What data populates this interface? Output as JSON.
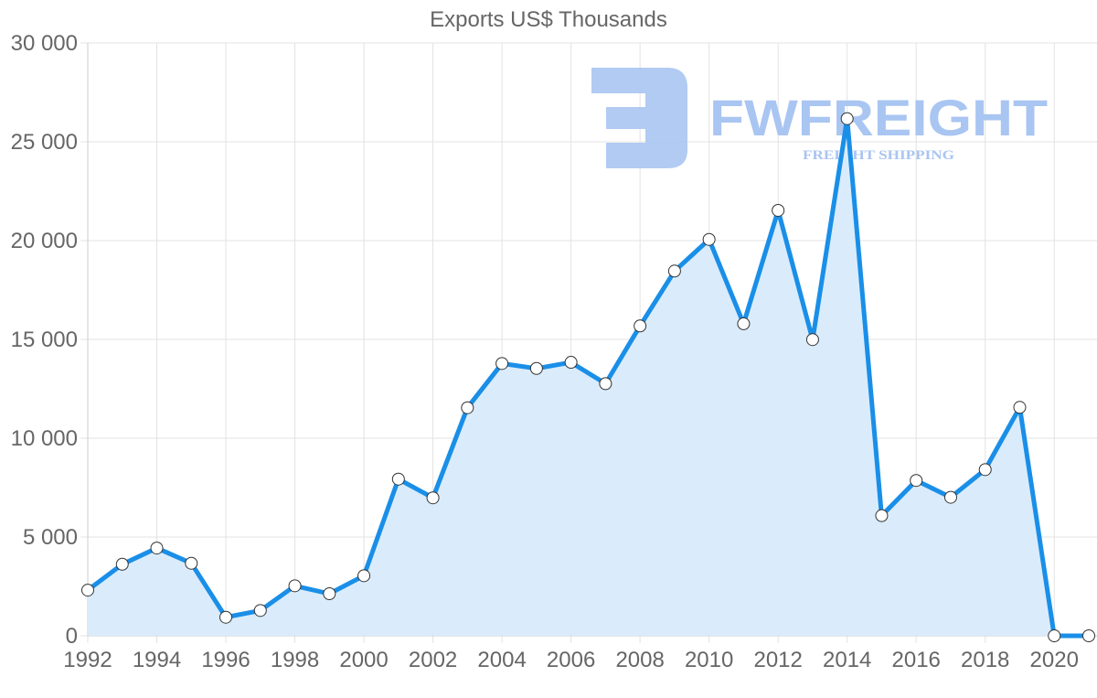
{
  "chart_data": {
    "type": "area",
    "title": "Exports US$ Thousands",
    "xlabel": "",
    "ylabel": "",
    "x": [
      1992,
      1993,
      1994,
      1995,
      1996,
      1997,
      1998,
      1999,
      2000,
      2001,
      2002,
      2003,
      2004,
      2005,
      2006,
      2007,
      2008,
      2009,
      2010,
      2011,
      2012,
      2013,
      2014,
      2015,
      2016,
      2017,
      2018,
      2019,
      2020,
      2021
    ],
    "series": [
      {
        "name": "Exports US$ Thousands",
        "values": [
          2310,
          3620,
          4440,
          3670,
          940,
          1280,
          2530,
          2130,
          3040,
          7930,
          6980,
          11540,
          13780,
          13530,
          13840,
          12760,
          15680,
          18460,
          20060,
          15790,
          21530,
          14990,
          26170,
          6080,
          7860,
          7010,
          8410,
          11560,
          0,
          0
        ]
      }
    ],
    "ylim": [
      0,
      30000
    ],
    "yticks": [
      0,
      5000,
      10000,
      15000,
      20000,
      25000,
      30000
    ],
    "ytick_labels": [
      "0",
      "5 000",
      "10 000",
      "15 000",
      "20 000",
      "25 000",
      "30 000"
    ],
    "xtick_labels": [
      "1992",
      "1994",
      "1996",
      "1998",
      "2000",
      "2002",
      "2004",
      "2006",
      "2008",
      "2010",
      "2012",
      "2014",
      "2016",
      "2018",
      "2020"
    ],
    "grid": true,
    "legend": "none",
    "colors": {
      "line": "#1a8fe8",
      "fill": "#d8ebfb",
      "marker_fill": "#ffffff",
      "marker_stroke": "#333333",
      "grid": "#e3e3e3",
      "text": "#666666"
    }
  },
  "watermark": {
    "brand": "FWFREIGHT",
    "tagline": "FREIGHT SHIPPING",
    "color": "#a9c5f2"
  }
}
